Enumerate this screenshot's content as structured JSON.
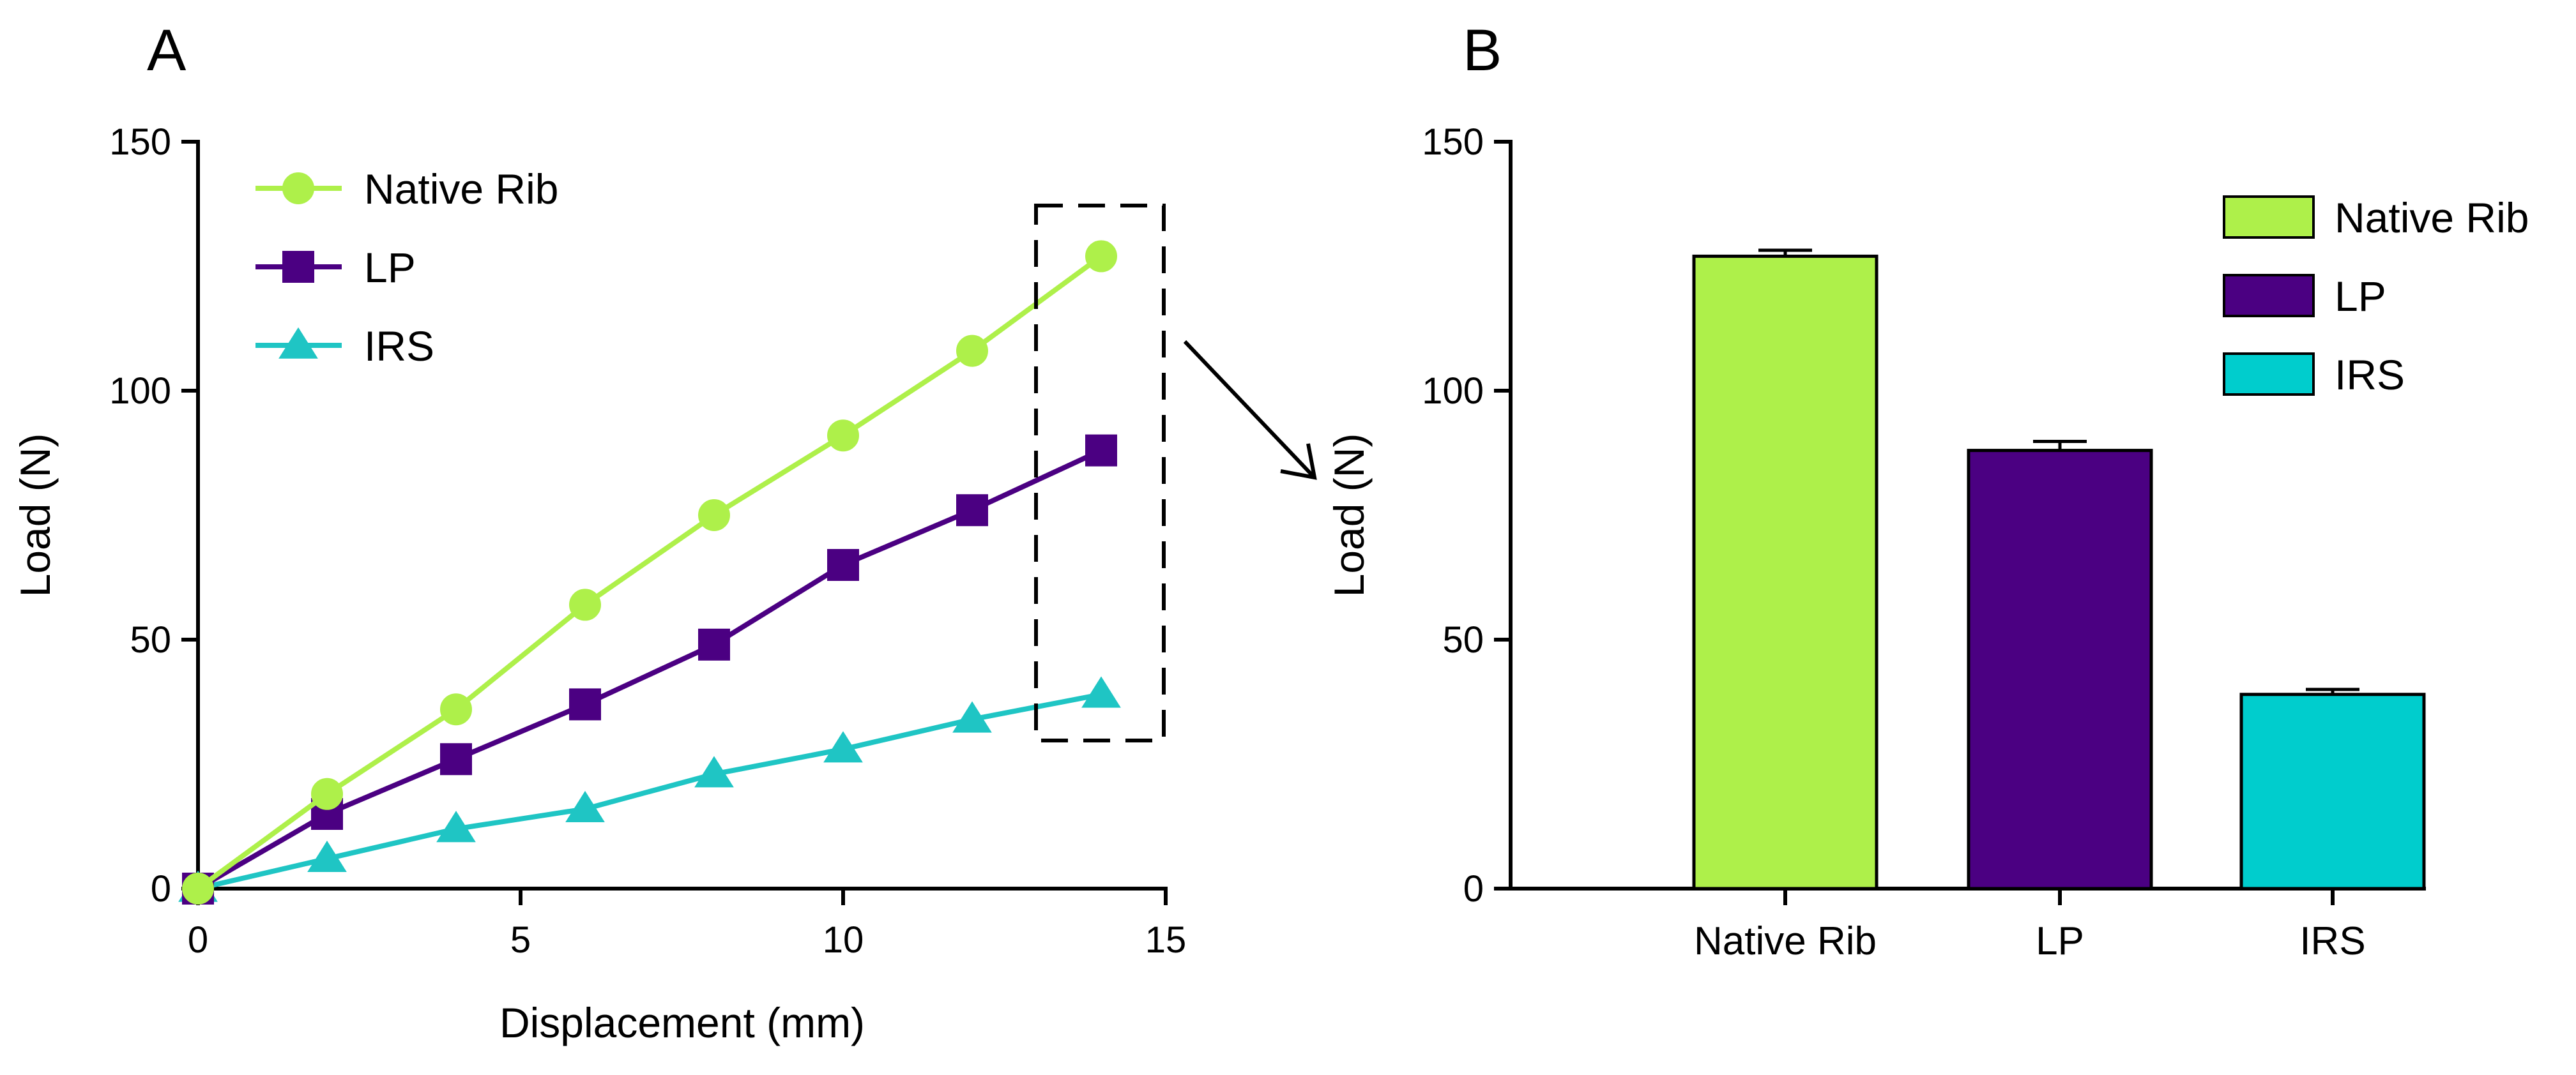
{
  "chart_data": [
    {
      "panel": "A",
      "type": "line",
      "xlabel": "Displacement (mm)",
      "ylabel": "Load (N)",
      "xlim": [
        0,
        15
      ],
      "ylim": [
        0,
        150
      ],
      "xticks": [
        0,
        5,
        10,
        15
      ],
      "yticks": [
        0,
        50,
        100,
        150
      ],
      "legend_position": "top-left",
      "x": [
        0,
        2,
        4,
        6,
        8,
        10,
        12,
        14
      ],
      "series": [
        {
          "name": "Native Rib",
          "marker": "circle",
          "color": "#aef04a",
          "values": [
            0,
            19,
            36,
            57,
            75,
            91,
            108,
            127
          ]
        },
        {
          "name": "LP",
          "marker": "square",
          "color": "#4b0082",
          "values": [
            0,
            15,
            26,
            37,
            49,
            65,
            76,
            88
          ]
        },
        {
          "name": "IRS",
          "marker": "triangle",
          "color": "#1fc5c4",
          "values": [
            0,
            6,
            12,
            16,
            23,
            28,
            34,
            39
          ]
        }
      ],
      "annotation": "dashed box around x = 14 data points, arrow pointing to panel B"
    },
    {
      "panel": "B",
      "type": "bar",
      "ylabel": "Load (N)",
      "ylim": [
        0,
        150
      ],
      "yticks": [
        0,
        50,
        100,
        150
      ],
      "legend_position": "top-right",
      "categories": [
        "Native Rib",
        "LP",
        "IRS"
      ],
      "values": [
        127,
        88,
        39
      ],
      "errors": [
        1.2,
        1.8,
        1.0
      ],
      "colors": [
        "#aef04a",
        "#4b0082",
        "#00cdcd"
      ]
    }
  ]
}
